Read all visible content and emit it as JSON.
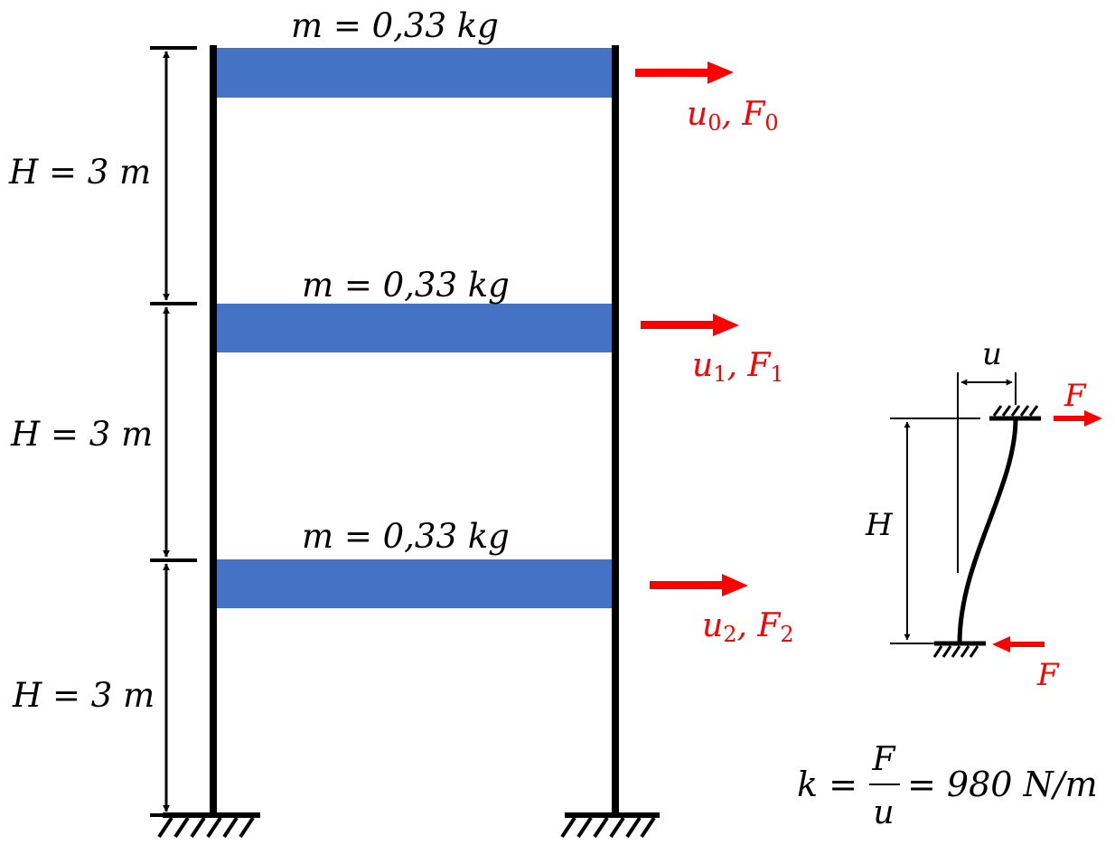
{
  "colors": {
    "floor": "#4472C4",
    "frame": "#000000",
    "load": "#FF0000"
  },
  "floors": [
    {
      "mass_label": "m = 0,33 kg",
      "disp": "u",
      "force": "F",
      "index": "0"
    },
    {
      "mass_label": "m = 0,33 kg",
      "disp": "u",
      "force": "F",
      "index": "1"
    },
    {
      "mass_label": "m = 0,33 kg",
      "disp": "u",
      "force": "F",
      "index": "2"
    }
  ],
  "stories": [
    {
      "height_label": "H = 3 m"
    },
    {
      "height_label": "H = 3 m"
    },
    {
      "height_label": "H = 3 m"
    }
  ],
  "column_detail": {
    "disp_label": "u",
    "height_label": "H",
    "force_top": "F",
    "force_bottom": "F"
  },
  "stiffness": {
    "lhs": "k =",
    "numerator": "F",
    "denominator": "u",
    "rhs": "= 980 N/m"
  }
}
